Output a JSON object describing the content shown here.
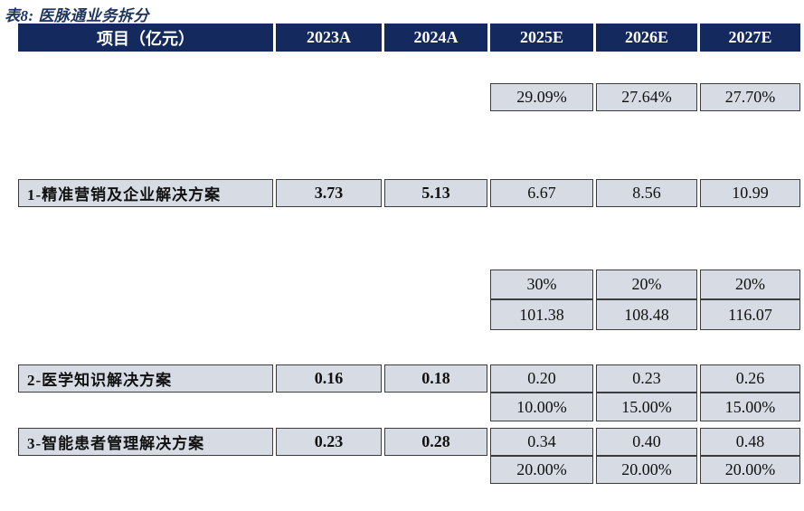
{
  "title": "表8: 医脉通业务拆分",
  "table": {
    "headers": [
      "项目（亿元）",
      "2023A",
      "2024A",
      "2025E",
      "2026E",
      "2027E"
    ],
    "rows": [
      {
        "cells": [
          null,
          null,
          null,
          "29.09%",
          "27.64%",
          "27.70%"
        ]
      },
      {
        "cells": [
          "1-精准营销及企业解决方案",
          "3.73",
          "5.13",
          "6.67",
          "8.56",
          "10.99"
        ]
      },
      {
        "cells": [
          null,
          null,
          null,
          "30%",
          "20%",
          "20%"
        ]
      },
      {
        "cells": [
          null,
          null,
          null,
          "101.38",
          "108.48",
          "116.07"
        ]
      },
      {
        "cells": [
          "2-医学知识解决方案",
          "0.16",
          "0.18",
          "0.20",
          "0.23",
          "0.26"
        ]
      },
      {
        "cells": [
          null,
          null,
          null,
          "10.00%",
          "15.00%",
          "15.00%"
        ]
      },
      {
        "cells": [
          "3-智能患者管理解决方案",
          "0.23",
          "0.28",
          "0.34",
          "0.40",
          "0.48"
        ]
      },
      {
        "cells": [
          null,
          null,
          null,
          "20.00%",
          "20.00%",
          "20.00%"
        ]
      }
    ]
  },
  "colors": {
    "header_bg": "#142A5E",
    "cell_bg": "#D7DBE3",
    "border": "#3C3C3C",
    "title_text": "#1E355F",
    "header_text": "#FFFFFF",
    "cell_text": "#111111",
    "page_bg": "#FFFFFF"
  }
}
